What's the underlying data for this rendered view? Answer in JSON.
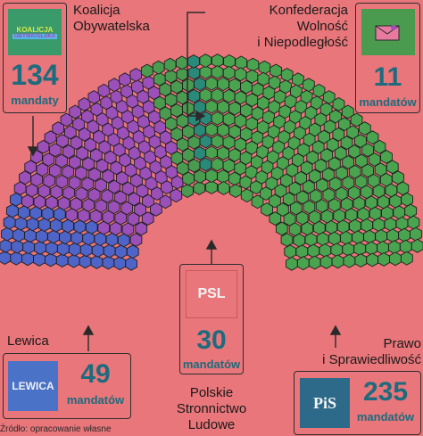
{
  "chart_data": {
    "type": "hemicycle",
    "total_seats": 460,
    "parties": [
      {
        "name": "Lewica",
        "seats": 49,
        "seats_text": "49",
        "unit": "mandatów",
        "logo_text": "LEWICA",
        "color": "#4f64c8"
      },
      {
        "name": "Koalicja Obywatelska",
        "name_lines": [
          "Koalicja",
          "Obywatelska"
        ],
        "seats": 134,
        "seats_text": "134",
        "unit": "mandaty",
        "logo_text_top": "KOALICJA",
        "logo_text_bottom": "OBYWATELSKA",
        "color": "#9b4fb8"
      },
      {
        "name": "Polskie Stronnictwo Ludowe",
        "name_lines": [
          "Polskie",
          "Stronnictwo",
          "Ludowe"
        ],
        "seats": 30,
        "seats_text": "30",
        "unit": "mandatów",
        "logo_text": "PSL",
        "color": "#4a9a4f"
      },
      {
        "name": "Konfederacja Wolność i Niepodległość",
        "name_lines": [
          "Konfederacja",
          "Wolność",
          "i Niepodległość"
        ],
        "seats": 11,
        "seats_text": "11",
        "unit": "mandatów",
        "color": "#2a8a7a"
      },
      {
        "name": "Prawo i Sprawiedliwość",
        "name_lines": [
          "Prawo",
          "i Sprawiedliwość"
        ],
        "seats": 235,
        "seats_text": "235",
        "unit": "mandatów",
        "logo_text": "PiS",
        "color": "#4aa34f"
      }
    ]
  },
  "source": "Źródło: opracowanie własne",
  "colors": {
    "background": "#e8767a",
    "accent_text": "#1d6b7d",
    "ko_logo_bg": "#3a9a6a",
    "lewica_logo_bg": "#4a73c8",
    "psl_logo_bg": "#e8767a",
    "pis_logo_bg": "#2d6a8a",
    "konf_logo_bg": "#4a9a4f"
  }
}
